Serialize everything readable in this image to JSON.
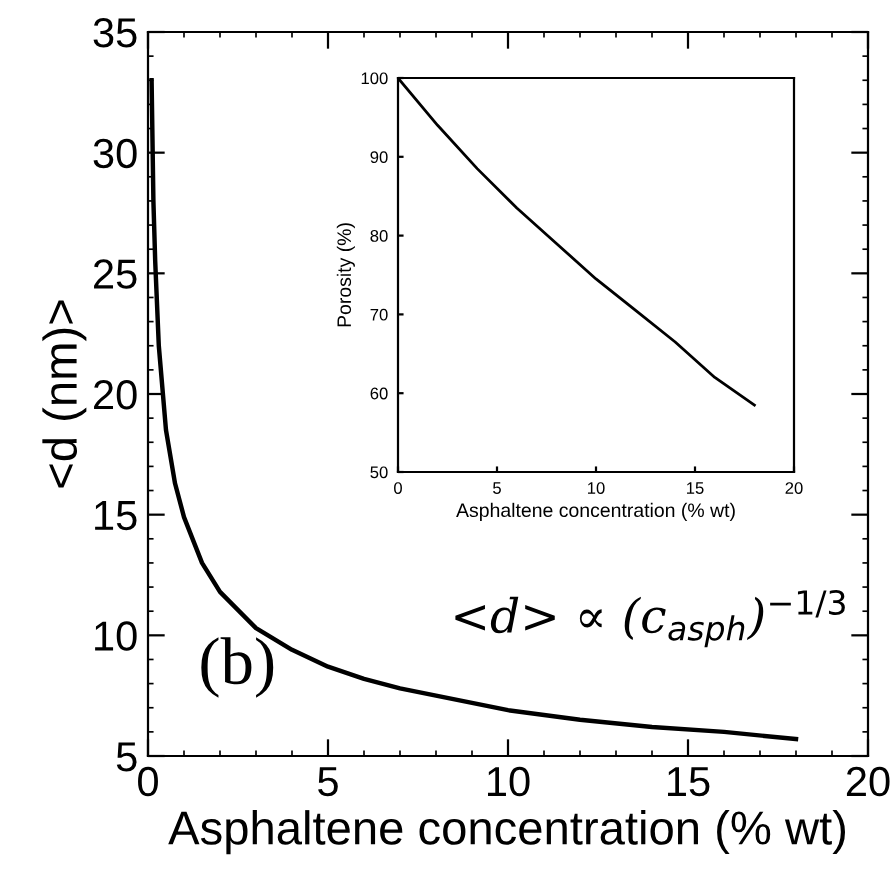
{
  "chart_data": [
    {
      "type": "line",
      "xlabel": "Asphaltene concentration (% wt)",
      "ylabel": "<d (nm)>",
      "x": [
        0.1,
        0.15,
        0.2,
        0.3,
        0.5,
        0.75,
        1,
        1.5,
        2,
        3,
        4,
        5,
        6,
        7,
        8,
        10,
        12,
        14,
        16,
        18
      ],
      "series": [
        {
          "color": "#000000",
          "values": [
            33,
            28,
            25.5,
            22,
            18.5,
            16.3,
            14.9,
            13,
            11.8,
            10.3,
            9.4,
            8.7,
            8.2,
            7.8,
            7.5,
            6.9,
            6.5,
            6.2,
            6.0,
            5.7
          ]
        }
      ],
      "xlim": [
        0,
        20
      ],
      "ylim": [
        5,
        35
      ],
      "xticks": [
        0,
        5,
        10,
        15,
        20
      ],
      "yticks": [
        5,
        10,
        15,
        20,
        25,
        30,
        35
      ],
      "grid": false,
      "marker": "none",
      "line_style": "solid",
      "annotations": [
        {
          "text": "(b)"
        },
        {
          "text": "<d> ∝ (c$_{asph}$)$^{−1/3}$"
        }
      ]
    },
    {
      "type": "line",
      "xlabel": "Asphaltene concentration (% wt)",
      "ylabel": "Porosity (%)",
      "x": [
        0,
        2,
        4,
        6,
        8,
        10,
        12,
        14,
        16,
        18
      ],
      "series": [
        {
          "color": "#000000",
          "values": [
            100,
            94,
            88.5,
            83.5,
            79,
            74.5,
            70.5,
            66.5,
            62,
            58.5
          ]
        }
      ],
      "xlim": [
        0,
        20
      ],
      "ylim": [
        50,
        100
      ],
      "xticks": [
        0,
        5,
        10,
        15,
        20
      ],
      "yticks": [
        50,
        60,
        70,
        80,
        90,
        100
      ],
      "grid": false,
      "marker": "none",
      "line_style": "solid"
    }
  ]
}
